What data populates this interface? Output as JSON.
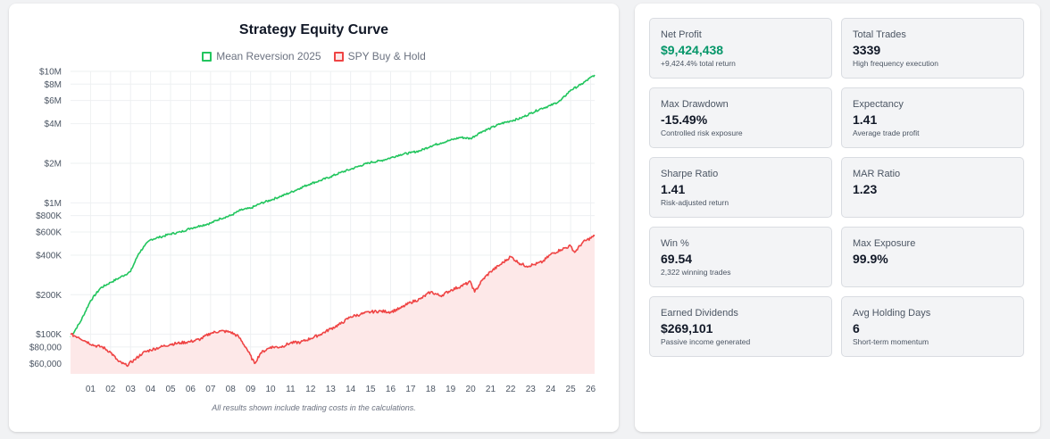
{
  "chart_data": {
    "type": "line",
    "title": "Strategy Equity Curve",
    "y_scale": "log",
    "ylim": [
      50000,
      10000000
    ],
    "xlim": [
      2000.0,
      2026.2
    ],
    "x_tick_labels": [
      "01",
      "02",
      "03",
      "04",
      "05",
      "06",
      "07",
      "08",
      "09",
      "10",
      "11",
      "12",
      "13",
      "14",
      "15",
      "16",
      "17",
      "18",
      "19",
      "20",
      "21",
      "22",
      "23",
      "24",
      "25",
      "26"
    ],
    "y_tick_labels": [
      {
        "value": 10000000,
        "label": "$10M"
      },
      {
        "value": 8000000,
        "label": "$8M"
      },
      {
        "value": 6000000,
        "label": "$6M"
      },
      {
        "value": 4000000,
        "label": "$4M"
      },
      {
        "value": 2000000,
        "label": "$2M"
      },
      {
        "value": 1000000,
        "label": "$1M"
      },
      {
        "value": 800000,
        "label": "$800K"
      },
      {
        "value": 600000,
        "label": "$600K"
      },
      {
        "value": 400000,
        "label": "$400K"
      },
      {
        "value": 200000,
        "label": "$200K"
      },
      {
        "value": 100000,
        "label": "$100K"
      },
      {
        "value": 80000,
        "label": "$80,000"
      },
      {
        "value": 60000,
        "label": "$60,000"
      }
    ],
    "grid": true,
    "legend_position": "top-center",
    "series": [
      {
        "name": "Mean Reversion 2025",
        "color": "#22c55e",
        "fill": false,
        "x": [
          2000.0,
          2000.5,
          2001.0,
          2001.5,
          2002.0,
          2002.5,
          2003.0,
          2003.4,
          2003.7,
          2004.0,
          2004.5,
          2005.0,
          2005.5,
          2006.0,
          2006.5,
          2007.0,
          2007.5,
          2008.0,
          2008.5,
          2009.0,
          2009.5,
          2010.0,
          2010.5,
          2011.0,
          2011.5,
          2012.0,
          2012.5,
          2013.0,
          2013.5,
          2014.0,
          2014.5,
          2015.0,
          2015.5,
          2016.0,
          2016.5,
          2017.0,
          2017.5,
          2018.0,
          2018.5,
          2019.0,
          2019.5,
          2020.0,
          2020.5,
          2021.0,
          2021.5,
          2022.0,
          2022.5,
          2023.0,
          2023.5,
          2024.0,
          2024.5,
          2025.0,
          2025.5,
          2026.2
        ],
        "y": [
          95000,
          125000,
          180000,
          225000,
          248000,
          272000,
          300000,
          410000,
          470000,
          525000,
          550000,
          580000,
          600000,
          640000,
          670000,
          700000,
          760000,
          800000,
          880000,
          910000,
          990000,
          1050000,
          1120000,
          1200000,
          1300000,
          1400000,
          1480000,
          1580000,
          1700000,
          1800000,
          1920000,
          2030000,
          2090000,
          2200000,
          2330000,
          2400000,
          2500000,
          2700000,
          2850000,
          3000000,
          3150000,
          3080000,
          3450000,
          3700000,
          4000000,
          4200000,
          4400000,
          4800000,
          5200000,
          5500000,
          6000000,
          7200000,
          7900000,
          9400000
        ]
      },
      {
        "name": "SPY Buy & Hold",
        "color": "#ef4444",
        "fill": true,
        "fill_color": "#fde8e8",
        "x": [
          2000.0,
          2000.4,
          2000.8,
          2001.2,
          2001.6,
          2002.0,
          2002.4,
          2002.8,
          2003.2,
          2003.6,
          2004.0,
          2004.5,
          2005.0,
          2005.5,
          2006.0,
          2006.5,
          2007.0,
          2007.5,
          2008.0,
          2008.4,
          2008.8,
          2009.2,
          2009.5,
          2010.0,
          2010.5,
          2011.0,
          2011.5,
          2012.0,
          2012.5,
          2013.0,
          2013.5,
          2014.0,
          2014.5,
          2015.0,
          2015.5,
          2016.0,
          2016.5,
          2017.0,
          2017.5,
          2018.0,
          2018.5,
          2019.0,
          2019.5,
          2020.0,
          2020.2,
          2020.6,
          2021.0,
          2021.5,
          2022.0,
          2022.4,
          2022.8,
          2023.2,
          2023.6,
          2024.0,
          2024.5,
          2025.0,
          2025.2,
          2025.6,
          2026.2
        ],
        "y": [
          100000,
          95000,
          88000,
          82000,
          80000,
          73000,
          62000,
          58000,
          64000,
          72000,
          76000,
          80000,
          84000,
          86000,
          88000,
          92000,
          102000,
          106000,
          104000,
          96000,
          78000,
          60000,
          72000,
          80000,
          80000,
          86000,
          87000,
          93000,
          100000,
          110000,
          120000,
          136000,
          142000,
          148000,
          150000,
          148000,
          158000,
          175000,
          186000,
          210000,
          196000,
          216000,
          232000,
          250000,
          210000,
          260000,
          300000,
          340000,
          390000,
          350000,
          330000,
          340000,
          356000,
          405000,
          440000,
          470000,
          420000,
          500000,
          560000
        ]
      }
    ]
  },
  "footnote": "All results shown include trading costs in the calculations.",
  "stats": [
    {
      "label": "Net Profit",
      "value": "$9,424,438",
      "sub": "+9,424.4% total return",
      "positive": true
    },
    {
      "label": "Total Trades",
      "value": "3339",
      "sub": "High frequency execution"
    },
    {
      "label": "Max Drawdown",
      "value": "-15.49%",
      "sub": "Controlled risk exposure"
    },
    {
      "label": "Expectancy",
      "value": "1.41",
      "sub": "Average trade profit"
    },
    {
      "label": "Sharpe Ratio",
      "value": "1.41",
      "sub": "Risk-adjusted return"
    },
    {
      "label": "MAR Ratio",
      "value": "1.23",
      "sub": ""
    },
    {
      "label": "Win %",
      "value": "69.54",
      "sub": "2,322 winning trades"
    },
    {
      "label": "Max Exposure",
      "value": "99.9%",
      "sub": ""
    },
    {
      "label": "Earned Dividends",
      "value": "$269,101",
      "sub": "Passive income generated"
    },
    {
      "label": "Avg Holding Days",
      "value": "6",
      "sub": "Short-term momentum"
    }
  ]
}
